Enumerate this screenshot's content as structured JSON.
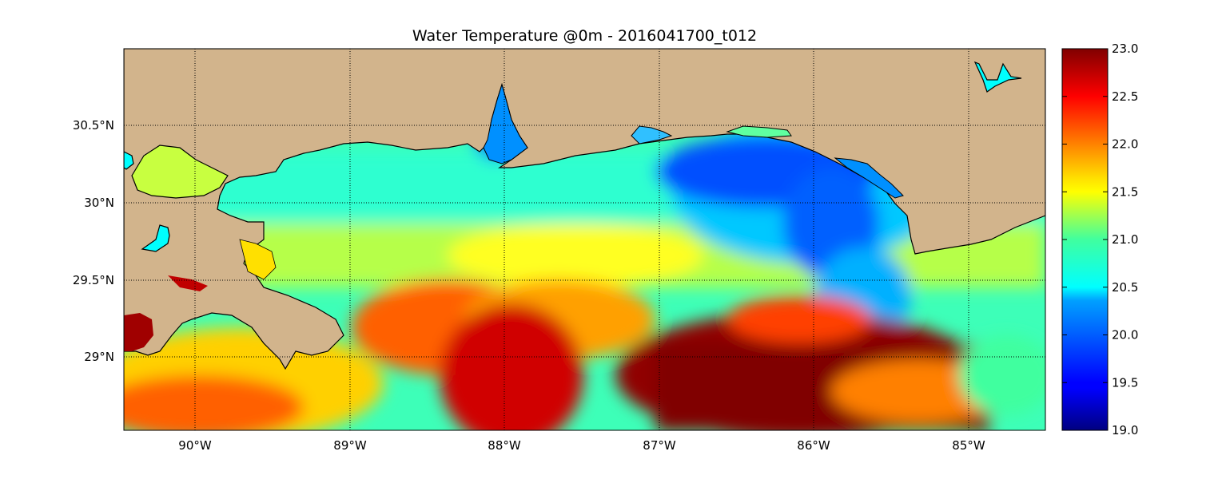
{
  "title": "Water Temperature @0m - 2016041700_t012",
  "map": {
    "lon_range": [
      -90.5,
      -84.5
    ],
    "lat_range": [
      28.55,
      31.0
    ],
    "lon_ticks": [
      {
        "value": -90,
        "label": "90°W"
      },
      {
        "value": -89,
        "label": "89°W"
      },
      {
        "value": -88,
        "label": "88°W"
      },
      {
        "value": -87,
        "label": "87°W"
      },
      {
        "value": -86,
        "label": "86°W"
      },
      {
        "value": -85,
        "label": "85°W"
      }
    ],
    "lat_ticks": [
      {
        "value": 30.5,
        "label": "30.5°N"
      },
      {
        "value": 30.0,
        "label": "30°N"
      },
      {
        "value": 29.5,
        "label": "29.5°N"
      },
      {
        "value": 29.0,
        "label": "29°N"
      }
    ],
    "gridlines": true,
    "colors": {
      "land": "#d2b48c",
      "coastline": "#000000",
      "lake": "#00ffff"
    }
  },
  "colorbar": {
    "colormap": "jet",
    "range": [
      19.0,
      23.0
    ],
    "ticks": [
      "19.0",
      "19.5",
      "20.0",
      "20.5",
      "21.0",
      "21.5",
      "22.0",
      "22.5",
      "23.0"
    ]
  }
}
